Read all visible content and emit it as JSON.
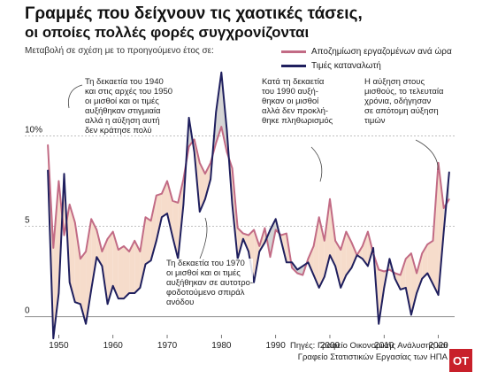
{
  "title": "Γραμμές που δείχνουν τις χαοτικές τάσεις,",
  "subtitle": "οι οποίες πολλές φορές συγχρονίζονται",
  "colors": {
    "wages": "#c26b85",
    "prices": "#1f1f5e",
    "fill": "#f6dccb",
    "gap": "#b8b8b8",
    "logo": "#c8202a"
  },
  "chart_data": {
    "type": "line",
    "title": "Γραμμές που δείχνουν τις χαοτικές τάσεις,",
    "subtitle": "οι οποίες πολλές φορές συγχρονίζονται",
    "ylabel": "Μεταβολή σε σχέση με το προηγούμενο έτος σε:",
    "xlabel": "",
    "xlim": [
      1947,
      2023
    ],
    "ylim": [
      -1,
      13
    ],
    "x_ticks": [
      "1950",
      "1960",
      "1970",
      "1980",
      "1990",
      "2000",
      "2010",
      "2020"
    ],
    "y_ticks": [
      "0",
      "5",
      "10%"
    ],
    "y_tick_values": [
      0,
      5,
      10
    ],
    "grid": "horizontal",
    "legend": "top-right",
    "fill_between_series": true,
    "x": [
      1948,
      1949,
      1950,
      1951,
      1952,
      1953,
      1954,
      1955,
      1956,
      1957,
      1958,
      1959,
      1960,
      1961,
      1962,
      1963,
      1964,
      1965,
      1966,
      1967,
      1968,
      1969,
      1970,
      1971,
      1972,
      1973,
      1974,
      1975,
      1976,
      1977,
      1978,
      1979,
      1980,
      1981,
      1982,
      1983,
      1984,
      1985,
      1986,
      1987,
      1988,
      1989,
      1990,
      1991,
      1992,
      1993,
      1994,
      1995,
      1996,
      1997,
      1998,
      1999,
      2000,
      2001,
      2002,
      2003,
      2004,
      2005,
      2006,
      2007,
      2008,
      2009,
      2010,
      2011,
      2012,
      2013,
      2014,
      2015,
      2016,
      2017,
      2018,
      2019,
      2020,
      2021,
      2022
    ],
    "series": [
      {
        "name": "Αποζημίωση εργαζομένων ανά ώρα",
        "values": [
          9.5,
          3.8,
          7.5,
          4.5,
          6.2,
          5.2,
          3.2,
          3.6,
          5.4,
          4.8,
          3.6,
          4.3,
          4.7,
          3.7,
          3.9,
          3.6,
          4.2,
          3.6,
          5.5,
          5.3,
          6.7,
          6.8,
          7.5,
          6.4,
          6.3,
          7.6,
          9.4,
          9.8,
          8.5,
          7.9,
          8.5,
          9.6,
          10.5,
          9.1,
          8.2,
          4.9,
          4.6,
          4.5,
          4.8,
          3.9,
          4.9,
          3.3,
          4.8,
          4.5,
          4.6,
          2.7,
          2.4,
          2.3,
          3.2,
          3.9,
          5.5,
          4.2,
          6.5,
          4.2,
          3.7,
          4.7,
          4.1,
          3.4,
          3.9,
          4.7,
          3.5,
          2.6,
          2.5,
          2.6,
          2.4,
          2.3,
          3.2,
          3.5,
          2.4,
          3.5,
          4.0,
          4.2,
          8.5,
          6.0,
          6.5
        ]
      },
      {
        "name": "Τιμές καταναλωτή",
        "values": [
          8.1,
          -1.2,
          1.3,
          7.9,
          1.9,
          0.8,
          0.7,
          -0.4,
          1.5,
          3.3,
          2.8,
          0.7,
          1.7,
          1.0,
          1.0,
          1.3,
          1.3,
          1.6,
          2.9,
          3.1,
          4.2,
          5.5,
          5.7,
          4.4,
          3.2,
          6.2,
          11.0,
          9.1,
          5.8,
          6.5,
          7.6,
          11.3,
          13.5,
          10.3,
          6.2,
          3.2,
          4.3,
          3.6,
          1.9,
          3.6,
          4.1,
          4.8,
          5.4,
          4.2,
          3.0,
          3.0,
          2.6,
          2.8,
          3.0,
          2.3,
          1.6,
          2.2,
          3.4,
          2.8,
          1.6,
          2.3,
          2.7,
          3.4,
          3.2,
          2.8,
          3.8,
          -0.4,
          1.6,
          3.2,
          2.1,
          1.5,
          1.6,
          0.1,
          1.3,
          2.1,
          2.4,
          1.8,
          1.2,
          4.7,
          8.0
        ]
      }
    ],
    "annotations": [
      "Τη δεκαετία του 1940 και στις αρχές του 1950 οι μισθοί και οι τιμές αυξήθηκαν στιγμιαία αλλά η αύξηση αυτή δεν κράτησε πολύ",
      "Κατά τη δεκαετία του 1990 αυξήθηκαν οι μισθοί αλλά δεν προκλήθηκε πληθωρισμός",
      "Η αύξηση στους μισθούς, το τελευταία χρόνια, οδήγησαν σε απότομη αύξηση τιμών",
      "Τη δεκαετία του 1970 οι μισθοί και οι τιμές αυξήθηκαν σε αυτοτροφοδοτούμενο σπιράλ ανόδου"
    ]
  },
  "legend": {
    "wages_label": "Αποζημίωση εργαζομένων ανά ώρα",
    "prices_label": "Τιμές καταναλωτή"
  },
  "annotations": {
    "a1940": [
      "Τη δεκαετία του 1940",
      "και στις αρχές του 1950",
      "οι μισθοί και οι τιμές",
      "αυξήθηκαν στιγμιαία",
      "αλλά η αύξηση αυτή",
      "δεν κράτησε πολύ"
    ],
    "a1990": [
      "Κατά τη δεκαετία",
      "του 1990 αυξή-",
      "θηκαν οι μισθοί",
      "αλλά δεν προκλή-",
      "θηκε πληθωρισμός"
    ],
    "a2020": [
      "Η αύξηση στους",
      "μισθούς, το τελευταία",
      "χρόνια, οδήγησαν",
      "σε απότομη αύξηση",
      "τιμών"
    ],
    "a1970": [
      "Τη δεκαετία του 1970",
      "οι μισθοί και οι τιμές",
      "αυξήθηκαν σε αυτοτρο-",
      "φοδοτούμενο σπιράλ",
      "ανόδου"
    ]
  },
  "source_lines": [
    "Πηγές: Γραφείο Οικονομικής Ανάλυσης και",
    "Γραφείο Στατιστικών Εργασίας των ΗΠΑ"
  ],
  "logo_text": "ΟΤ"
}
